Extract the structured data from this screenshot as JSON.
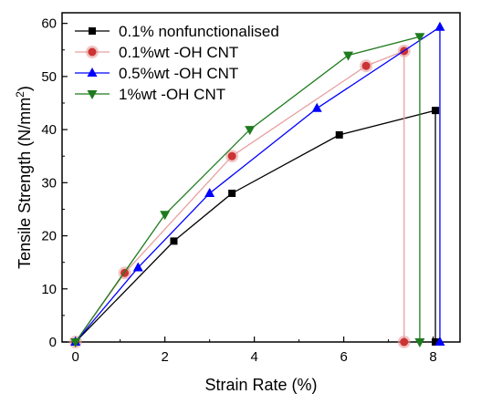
{
  "chart_data": {
    "type": "line",
    "xlabel": "Strain Rate (%)",
    "ylabel": "Tensile Strength (N/mm",
    "ylabel_sup": "2",
    "ylabel_suffix": ")",
    "xlim": [
      -0.3,
      8.6
    ],
    "ylim": [
      0,
      62
    ],
    "x_ticks": [
      0,
      2,
      4,
      6,
      8
    ],
    "y_ticks": [
      0,
      10,
      20,
      30,
      40,
      50,
      60
    ],
    "x_tick_labels": [
      "0",
      "2",
      "4",
      "6",
      "8"
    ],
    "y_tick_labels": [
      "0",
      "10",
      "20",
      "30",
      "40",
      "50",
      "60"
    ],
    "grid": false,
    "legend_position": "top-left",
    "series": [
      {
        "name": "0.1% nonfunctionalised",
        "color": "#000000",
        "marker": "square",
        "x": [
          0,
          2.2,
          3.5,
          5.9,
          8.05,
          8.05
        ],
        "y": [
          0,
          19,
          28,
          39,
          43.6,
          0
        ]
      },
      {
        "name": "0.1%wt -OH CNT",
        "color": "#e8a0a0",
        "marker_fill": "#cc3333",
        "marker": "circle",
        "x": [
          0,
          1.1,
          3.5,
          6.5,
          7.35,
          7.35
        ],
        "y": [
          0,
          13,
          35,
          52,
          54.8,
          0
        ]
      },
      {
        "name": "0.5%wt -OH CNT",
        "color": "#0000ff",
        "marker": "triangle-up",
        "x": [
          0,
          1.4,
          3.0,
          5.4,
          8.15,
          8.15
        ],
        "y": [
          0,
          14,
          28,
          44,
          59.3,
          0
        ]
      },
      {
        "name": "1%wt -OH CNT",
        "color": "#1e7b1e",
        "marker": "triangle-down",
        "x": [
          0,
          2.0,
          3.9,
          6.1,
          7.7,
          7.7
        ],
        "y": [
          0,
          24,
          40,
          54,
          57.5,
          0
        ]
      }
    ]
  }
}
